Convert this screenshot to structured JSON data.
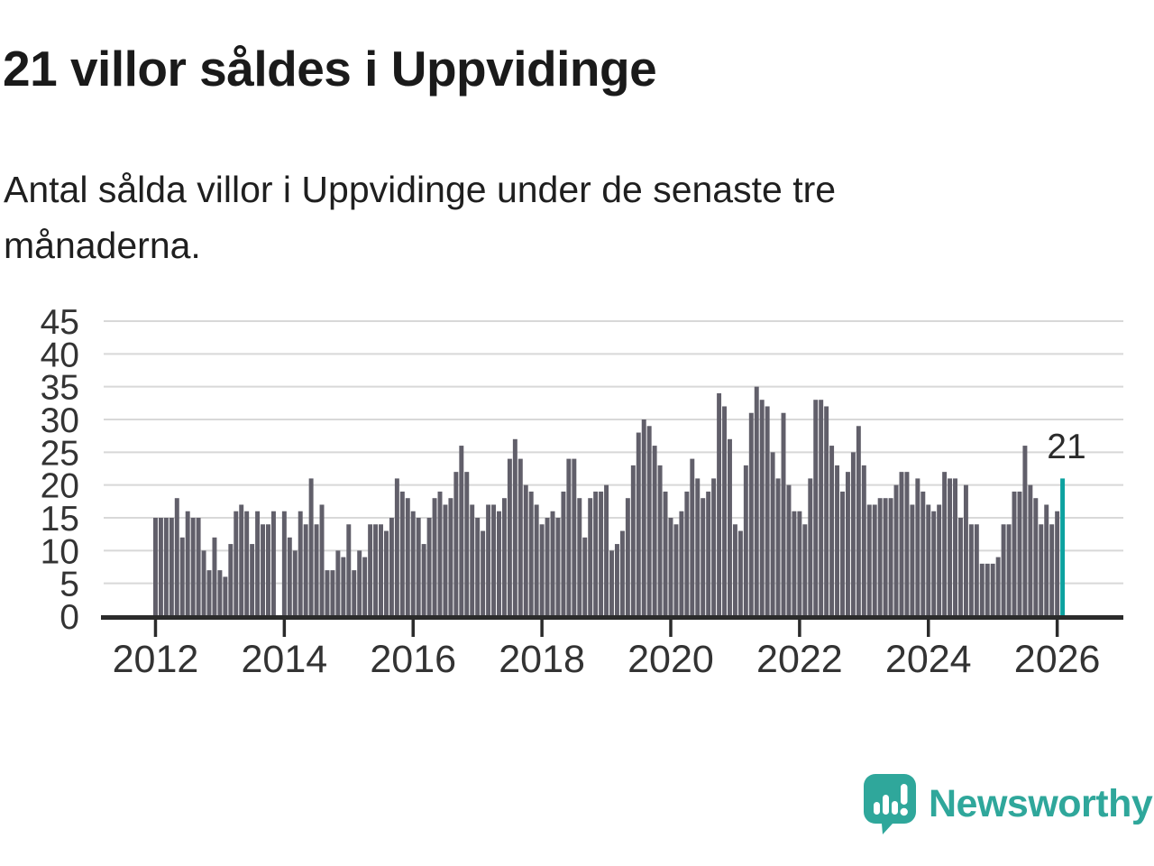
{
  "header": {
    "title": "21 villor såldes i Uppvidinge",
    "subtitle": "Antal sålda villor i Uppvidinge under de senaste tre månaderna."
  },
  "chart_data": {
    "type": "bar",
    "title": "21 villor såldes i Uppvidinge",
    "xlabel": "",
    "ylabel": "",
    "x_start": "2012-01",
    "x_end": "2026-02",
    "frequency": "monthly",
    "values": [
      15,
      15,
      15,
      15,
      18,
      12,
      16,
      15,
      15,
      10,
      7,
      12,
      7,
      6,
      11,
      16,
      17,
      16,
      11,
      16,
      14,
      14,
      16,
      0,
      16,
      12,
      10,
      16,
      14,
      21,
      14,
      17,
      7,
      7,
      10,
      9,
      14,
      7,
      10,
      9,
      14,
      14,
      14,
      13,
      15,
      21,
      19,
      18,
      16,
      15,
      11,
      15,
      18,
      19,
      17,
      18,
      22,
      26,
      22,
      17,
      15,
      13,
      17,
      17,
      16,
      18,
      24,
      27,
      24,
      20,
      19,
      17,
      14,
      15,
      16,
      15,
      19,
      24,
      24,
      18,
      12,
      18,
      19,
      19,
      20,
      10,
      11,
      13,
      18,
      23,
      28,
      30,
      29,
      26,
      23,
      19,
      15,
      14,
      16,
      19,
      24,
      21,
      18,
      19,
      21,
      34,
      32,
      27,
      14,
      13,
      23,
      31,
      35,
      33,
      32,
      25,
      21,
      31,
      20,
      16,
      16,
      14,
      21,
      33,
      33,
      32,
      26,
      23,
      19,
      22,
      25,
      29,
      23,
      17,
      17,
      18,
      18,
      18,
      20,
      22,
      22,
      17,
      21,
      19,
      17,
      16,
      17,
      22,
      21,
      21,
      15,
      20,
      14,
      14,
      8,
      8,
      8,
      9,
      14,
      14,
      19,
      19,
      26,
      20,
      18,
      14,
      17,
      14,
      16,
      21
    ],
    "highlight": {
      "position": "last",
      "label": "21",
      "value": 21,
      "color": "#0da2a0"
    },
    "bar_color": "#615f6a",
    "grid_color": "#d8d8d8",
    "axis_color": "#2b2b2b",
    "tick_label_color": "#333333",
    "ylim": [
      0,
      45
    ],
    "yticks": [
      0,
      5,
      10,
      15,
      20,
      25,
      30,
      35,
      40,
      45
    ],
    "xticks": [
      2012,
      2014,
      2016,
      2018,
      2020,
      2022,
      2024,
      2026
    ],
    "grid": true,
    "legend": false
  },
  "footer": {
    "brand": "Newsworthy",
    "brand_color": "#2fa79b",
    "logo_icon": "speech-bubble-bar-chart-icon"
  }
}
